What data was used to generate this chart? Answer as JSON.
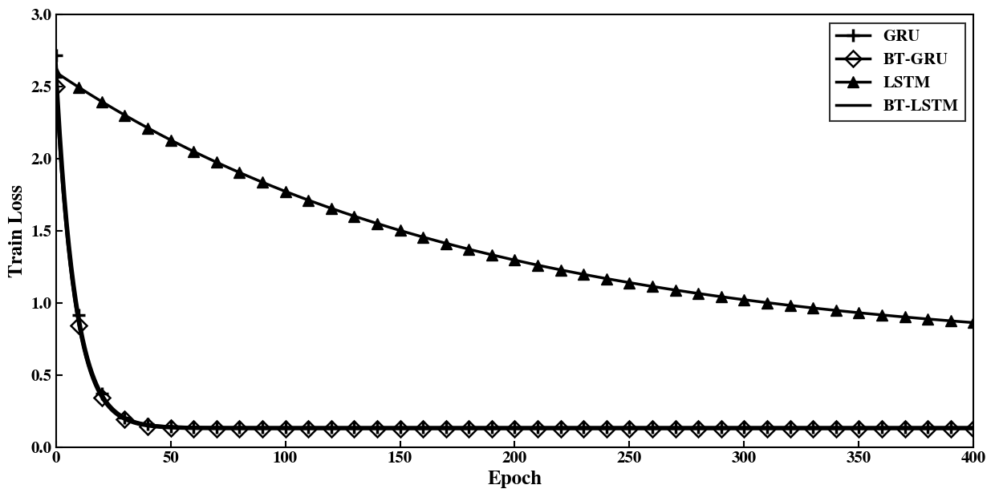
{
  "xlabel": "Epoch",
  "ylabel": "Train Loss",
  "xlim": [
    0,
    400
  ],
  "ylim": [
    0,
    3
  ],
  "xticks": [
    0,
    50,
    100,
    150,
    200,
    250,
    300,
    350,
    400
  ],
  "yticks": [
    0,
    0.5,
    1.0,
    1.5,
    2.0,
    2.5,
    3.0
  ],
  "gru": {
    "start": 2.72,
    "end": 0.14,
    "decay": 0.12
  },
  "btgru": {
    "start": 2.5,
    "end": 0.13,
    "decay": 0.12
  },
  "lstm": {
    "start": 2.6,
    "end": 0.65,
    "decay": 0.006
  },
  "btlstm": {
    "start": 2.5,
    "end": 0.14,
    "decay": 0.12
  },
  "markevery": 10,
  "linewidth": 2.5,
  "markersize_plus": 11,
  "markersize_diamond": 10,
  "markersize_triangle": 10,
  "legend_loc": "upper right",
  "label_fontsize": 18,
  "tick_fontsize": 15,
  "legend_fontsize": 15
}
